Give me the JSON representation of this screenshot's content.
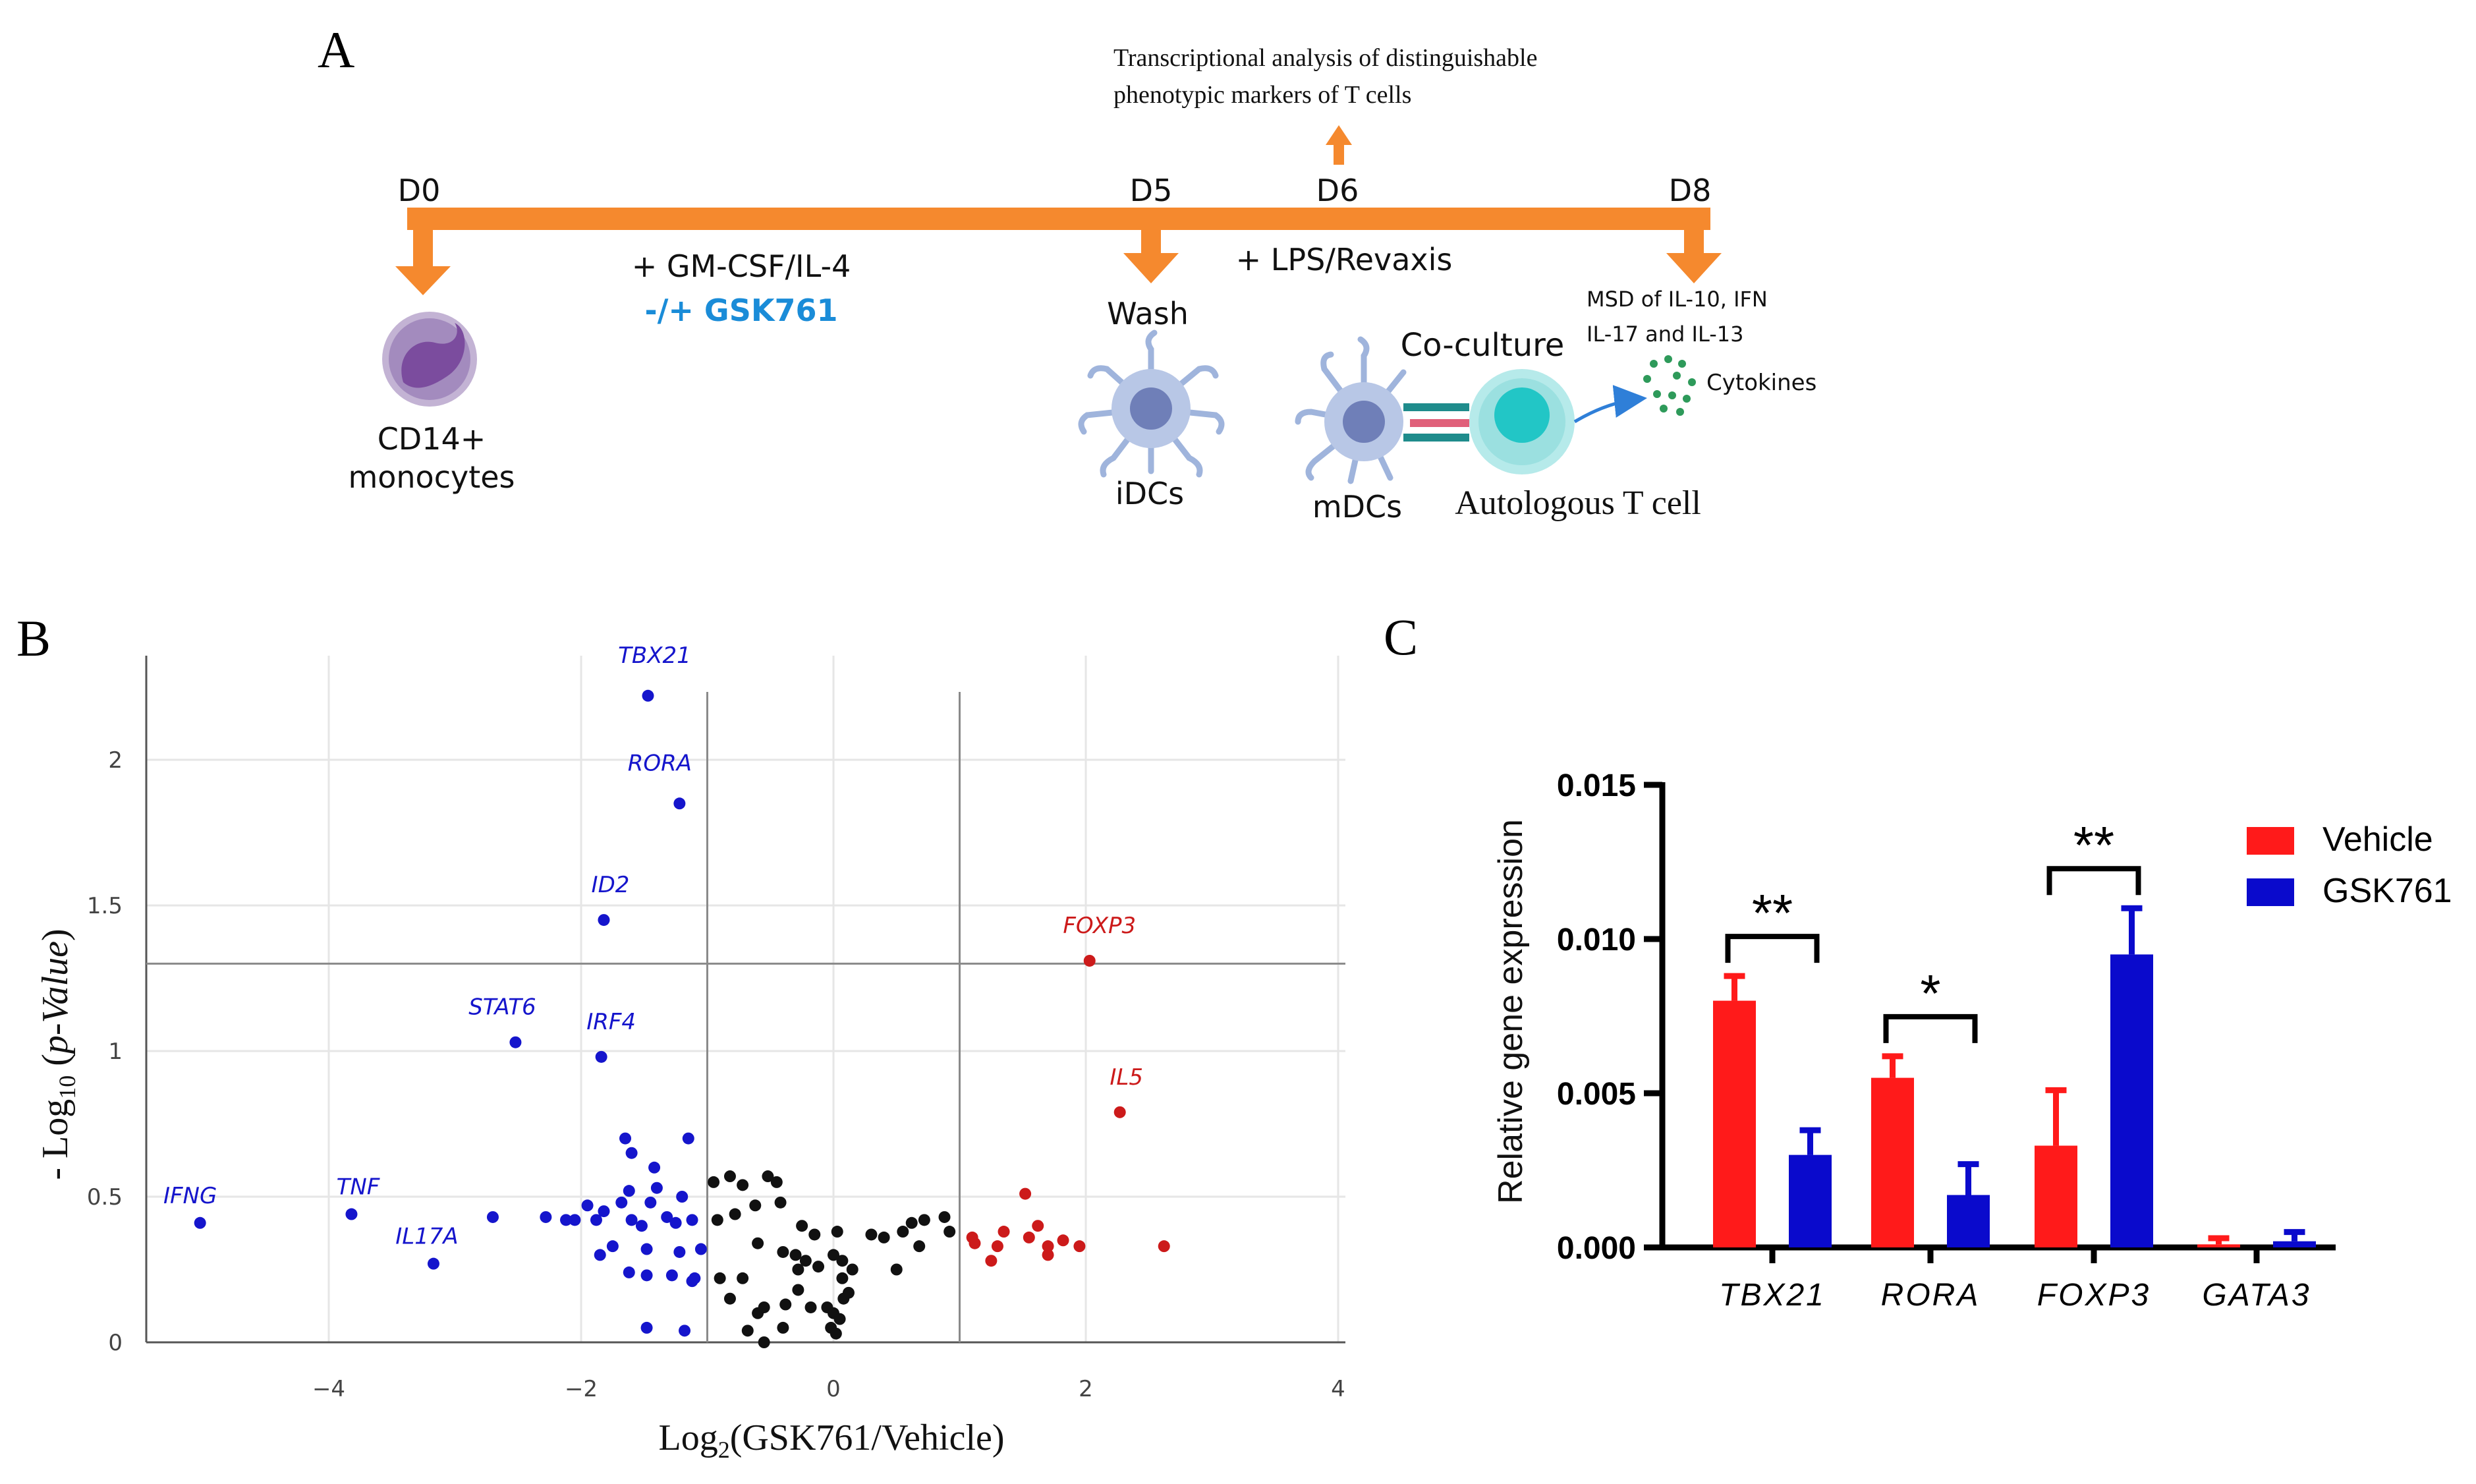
{
  "colors": {
    "orange": "#F5892E",
    "blue_text": "#1A8CD8",
    "blue_gene": "#1515CC",
    "red_gene": "#CC1A1A",
    "bar_red": "#FF1A1A",
    "bar_blue": "#0A0ACC",
    "cell_purple": "#9C7DB3",
    "cell_blue": "#9FB4DC",
    "tcell_cyan": "#22C6C6",
    "cytokine_green": "#2E9A5A"
  },
  "panelA": {
    "label": "A",
    "days": [
      "D0",
      "D5",
      "D6",
      "D8"
    ],
    "top_note": [
      "Transcriptional analysis of distinguishable",
      "phenotypic markers of T cells"
    ],
    "treatment1": "+ GM-CSF/IL-4",
    "treatment2": "-/+ GSK761",
    "wash": "Wash",
    "treatment3": "+ LPS/Revaxis",
    "msd": [
      "MSD of IL-10, IFN",
      "IL-17 and IL-13"
    ],
    "cytokines": "Cytokines",
    "coculture": "Co-culture",
    "monocytes": [
      "CD14+",
      "monocytes"
    ],
    "idcs": "iDCs",
    "mdcs": "mDCs",
    "tcell": "Autologous T cell"
  },
  "panelB": {
    "label": "B",
    "chart_data": {
      "type": "scatter",
      "title": "",
      "xlabel": "Log2(GSK761/Vehicle)",
      "ylabel": "- Log10 (p-Value)",
      "xlim": [
        -5.3,
        4
      ],
      "ylim": [
        0,
        2.35
      ],
      "x_ticks": [
        -4,
        -2,
        0,
        2,
        4
      ],
      "y_ticks": [
        0,
        0.5,
        1,
        1.5,
        2
      ],
      "x_tick_labels": [
        "−4",
        "−2",
        "0",
        "2",
        "4"
      ],
      "y_tick_labels": [
        "0",
        "0.5",
        "1",
        "1.5",
        "2"
      ],
      "thresholds": {
        "x": [
          -1,
          1
        ],
        "y": 1.3
      },
      "labeled_points": [
        {
          "gene": "TBX21",
          "x": -1.47,
          "y": 2.22,
          "group": "down"
        },
        {
          "gene": "RORA",
          "x": -1.22,
          "y": 1.85,
          "group": "down"
        },
        {
          "gene": "ID2",
          "x": -1.82,
          "y": 1.45,
          "group": "down"
        },
        {
          "gene": "STAT6",
          "x": -2.52,
          "y": 1.03,
          "group": "down"
        },
        {
          "gene": "IRF4",
          "x": -1.84,
          "y": 0.98,
          "group": "down"
        },
        {
          "gene": "IFNG",
          "x": -5.02,
          "y": 0.41,
          "group": "down"
        },
        {
          "gene": "TNF",
          "x": -3.82,
          "y": 0.44,
          "group": "down"
        },
        {
          "gene": "IL17A",
          "x": -3.17,
          "y": 0.27,
          "group": "down"
        },
        {
          "gene": "FOXP3",
          "x": 2.03,
          "y": 1.31,
          "group": "up"
        },
        {
          "gene": "IL5",
          "x": 2.27,
          "y": 0.79,
          "group": "up"
        }
      ],
      "series": [
        {
          "name": "down",
          "points": [
            [
              -1.65,
              0.7
            ],
            [
              -1.15,
              0.7
            ],
            [
              -1.6,
              0.65
            ],
            [
              -1.42,
              0.6
            ],
            [
              -1.62,
              0.52
            ],
            [
              -1.4,
              0.53
            ],
            [
              -1.82,
              0.45
            ],
            [
              -1.68,
              0.48
            ],
            [
              -1.45,
              0.48
            ],
            [
              -1.2,
              0.5
            ],
            [
              -1.95,
              0.47
            ],
            [
              -2.05,
              0.42
            ],
            [
              -1.88,
              0.42
            ],
            [
              -1.6,
              0.42
            ],
            [
              -1.52,
              0.4
            ],
            [
              -1.32,
              0.43
            ],
            [
              -1.25,
              0.41
            ],
            [
              -1.12,
              0.42
            ],
            [
              -2.28,
              0.43
            ],
            [
              -2.12,
              0.42
            ],
            [
              -2.7,
              0.43
            ],
            [
              -1.75,
              0.33
            ],
            [
              -1.48,
              0.32
            ],
            [
              -1.22,
              0.31
            ],
            [
              -1.05,
              0.32
            ],
            [
              -1.85,
              0.3
            ],
            [
              -1.62,
              0.24
            ],
            [
              -1.48,
              0.23
            ],
            [
              -1.28,
              0.23
            ],
            [
              -1.12,
              0.21
            ],
            [
              -1.48,
              0.05
            ],
            [
              -1.18,
              0.04
            ],
            [
              -1.1,
              0.22
            ]
          ]
        },
        {
          "name": "ns",
          "points": [
            [
              -0.95,
              0.55
            ],
            [
              -0.82,
              0.57
            ],
            [
              -0.72,
              0.54
            ],
            [
              -0.52,
              0.57
            ],
            [
              -0.45,
              0.55
            ],
            [
              -0.42,
              0.48
            ],
            [
              -0.62,
              0.47
            ],
            [
              -0.78,
              0.44
            ],
            [
              -0.92,
              0.42
            ],
            [
              -0.25,
              0.4
            ],
            [
              -0.15,
              0.37
            ],
            [
              0.03,
              0.38
            ],
            [
              -0.6,
              0.34
            ],
            [
              -0.4,
              0.31
            ],
            [
              -0.3,
              0.3
            ],
            [
              -0.22,
              0.28
            ],
            [
              -0.28,
              0.25
            ],
            [
              -0.12,
              0.26
            ],
            [
              0.07,
              0.28
            ],
            [
              0.15,
              0.25
            ],
            [
              0.07,
              0.22
            ],
            [
              -0.9,
              0.22
            ],
            [
              -0.72,
              0.22
            ],
            [
              -0.82,
              0.15
            ],
            [
              -0.6,
              0.1
            ],
            [
              -0.55,
              0.12
            ],
            [
              -0.38,
              0.13
            ],
            [
              -0.28,
              0.18
            ],
            [
              -0.18,
              0.12
            ],
            [
              -0.05,
              0.12
            ],
            [
              0.0,
              0.1
            ],
            [
              0.05,
              0.08
            ],
            [
              0.08,
              0.15
            ],
            [
              0.12,
              0.17
            ],
            [
              -0.02,
              0.05
            ],
            [
              0.02,
              0.03
            ],
            [
              -0.68,
              0.04
            ],
            [
              -0.55,
              0.0
            ],
            [
              0.0,
              0.3
            ],
            [
              0.3,
              0.37
            ],
            [
              0.4,
              0.36
            ],
            [
              0.55,
              0.38
            ],
            [
              0.62,
              0.41
            ],
            [
              0.72,
              0.42
            ],
            [
              0.88,
              0.43
            ],
            [
              0.92,
              0.38
            ],
            [
              0.68,
              0.33
            ],
            [
              0.5,
              0.25
            ],
            [
              -0.4,
              0.05
            ]
          ]
        },
        {
          "name": "up",
          "points": [
            [
              1.52,
              0.51
            ],
            [
              1.62,
              0.4
            ],
            [
              1.35,
              0.38
            ],
            [
              1.1,
              0.36
            ],
            [
              1.55,
              0.36
            ],
            [
              1.82,
              0.35
            ],
            [
              1.7,
              0.33
            ],
            [
              1.95,
              0.33
            ],
            [
              1.3,
              0.33
            ],
            [
              1.25,
              0.28
            ],
            [
              1.7,
              0.3
            ],
            [
              2.62,
              0.33
            ],
            [
              1.12,
              0.34
            ]
          ]
        }
      ]
    }
  },
  "panelC": {
    "label": "C",
    "chart_data": {
      "type": "bar",
      "title": "",
      "ylabel": "Relative gene expression",
      "xlabel": "",
      "ylim": [
        0,
        0.015
      ],
      "y_ticks": [
        "0.000",
        "0.005",
        "0.010",
        "0.015"
      ],
      "categories": [
        "TBX21",
        "RORA",
        "FOXP3",
        "GATA3"
      ],
      "series": [
        {
          "name": "Vehicle",
          "values": [
            0.008,
            0.0055,
            0.0033,
            0.0001
          ],
          "errors": [
            0.0008,
            0.0007,
            0.0018,
            0.0002
          ]
        },
        {
          "name": "GSK761",
          "values": [
            0.003,
            0.0017,
            0.0095,
            0.0002
          ],
          "errors": [
            0.0008,
            0.001,
            0.0015,
            0.0003
          ]
        }
      ],
      "significance": [
        {
          "category": "TBX21",
          "label": "**"
        },
        {
          "category": "RORA",
          "label": "*"
        },
        {
          "category": "FOXP3",
          "label": "**"
        }
      ],
      "legend": "top-right"
    }
  }
}
